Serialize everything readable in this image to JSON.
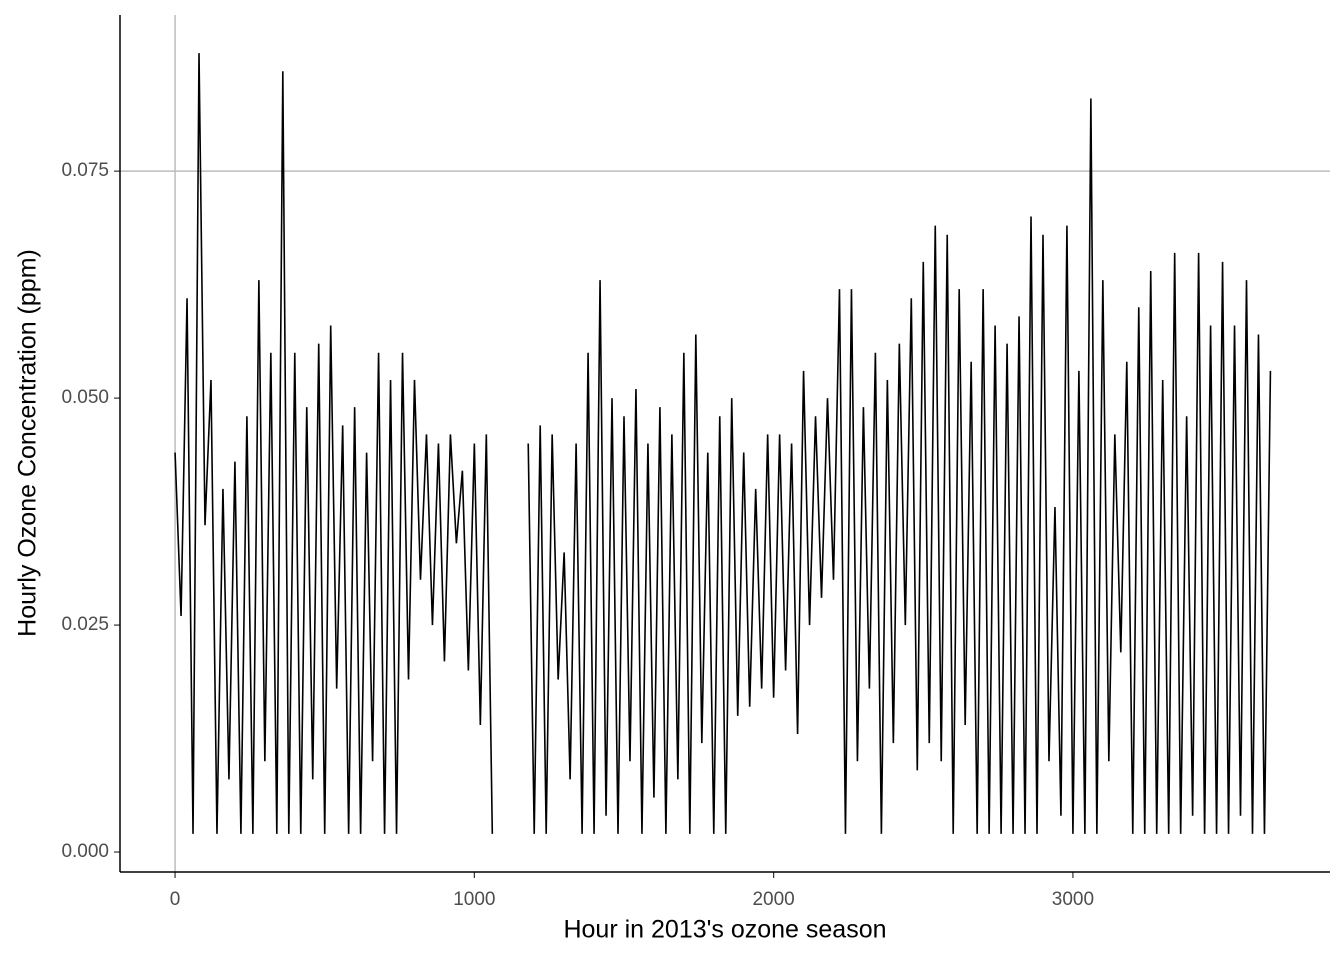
{
  "chart_data": {
    "type": "line",
    "x_label": "Hour in 2013's ozone season",
    "y_label": "Hourly Ozone Concentration (ppm)",
    "color": "#000000",
    "x": [
      0,
      20,
      40,
      60,
      80,
      100,
      120,
      140,
      160,
      180,
      200,
      220,
      240,
      260,
      280,
      300,
      320,
      340,
      360,
      380,
      400,
      420,
      440,
      460,
      480,
      500,
      520,
      540,
      560,
      580,
      600,
      620,
      640,
      660,
      680,
      700,
      720,
      740,
      760,
      780,
      800,
      820,
      840,
      860,
      880,
      900,
      920,
      940,
      960,
      980,
      1000,
      1020,
      1040,
      1060,
      1080,
      1100,
      1120,
      1140,
      1160,
      1180,
      1200,
      1220,
      1240,
      1260,
      1280,
      1300,
      1320,
      1340,
      1360,
      1380,
      1400,
      1420,
      1440,
      1460,
      1480,
      1500,
      1520,
      1540,
      1560,
      1580,
      1600,
      1620,
      1640,
      1660,
      1680,
      1700,
      1720,
      1740,
      1760,
      1780,
      1800,
      1820,
      1840,
      1860,
      1880,
      1900,
      1920,
      1940,
      1960,
      1980,
      2000,
      2020,
      2040,
      2060,
      2080,
      2100,
      2120,
      2140,
      2160,
      2180,
      2200,
      2220,
      2240,
      2260,
      2280,
      2300,
      2320,
      2340,
      2360,
      2380,
      2400,
      2420,
      2440,
      2460,
      2480,
      2500,
      2520,
      2540,
      2560,
      2580,
      2600,
      2620,
      2640,
      2660,
      2680,
      2700,
      2720,
      2740,
      2760,
      2780,
      2800,
      2820,
      2840,
      2860,
      2880,
      2900,
      2920,
      2940,
      2960,
      2980,
      3000,
      3020,
      3040,
      3060,
      3080,
      3100,
      3120,
      3140,
      3160,
      3180,
      3200,
      3220,
      3240,
      3260,
      3280,
      3300,
      3320,
      3340,
      3360,
      3380,
      3400,
      3420,
      3440,
      3460,
      3480,
      3500,
      3520,
      3540,
      3560,
      3580,
      3600,
      3620,
      3640,
      3660
    ],
    "values": [
      0.044,
      0.026,
      0.061,
      0.002,
      0.088,
      0.036,
      0.052,
      0.002,
      0.04,
      0.008,
      0.043,
      0.002,
      0.048,
      0.002,
      0.063,
      0.01,
      0.055,
      0.002,
      0.086,
      0.002,
      0.055,
      0.002,
      0.049,
      0.008,
      0.056,
      0.002,
      0.058,
      0.018,
      0.047,
      0.002,
      0.049,
      0.002,
      0.044,
      0.01,
      0.055,
      0.002,
      0.052,
      0.002,
      0.055,
      0.019,
      0.052,
      0.03,
      0.046,
      0.025,
      0.045,
      0.021,
      0.046,
      0.034,
      0.042,
      0.02,
      0.045,
      0.014,
      0.046,
      0.002,
      null,
      null,
      null,
      null,
      null,
      0.045,
      0.002,
      0.047,
      0.002,
      0.046,
      0.019,
      0.033,
      0.008,
      0.045,
      0.002,
      0.055,
      0.002,
      0.063,
      0.004,
      0.05,
      0.002,
      0.048,
      0.01,
      0.051,
      0.002,
      0.045,
      0.006,
      0.049,
      0.002,
      0.046,
      0.008,
      0.055,
      0.002,
      0.057,
      0.012,
      0.044,
      0.002,
      0.048,
      0.002,
      0.05,
      0.015,
      0.044,
      0.016,
      0.04,
      0.018,
      0.046,
      0.017,
      0.046,
      0.02,
      0.045,
      0.013,
      0.053,
      0.025,
      0.048,
      0.028,
      0.05,
      0.03,
      0.062,
      0.002,
      0.062,
      0.01,
      0.049,
      0.018,
      0.055,
      0.002,
      0.052,
      0.012,
      0.056,
      0.025,
      0.061,
      0.009,
      0.065,
      0.012,
      0.069,
      0.01,
      0.068,
      0.002,
      0.062,
      0.014,
      0.054,
      0.002,
      0.062,
      0.002,
      0.058,
      0.002,
      0.056,
      0.002,
      0.059,
      0.002,
      0.07,
      0.002,
      0.068,
      0.01,
      0.038,
      0.004,
      0.069,
      0.002,
      0.053,
      0.002,
      0.083,
      0.002,
      0.063,
      0.01,
      0.046,
      0.022,
      0.054,
      0.002,
      0.06,
      0.002,
      0.064,
      0.002,
      0.052,
      0.002,
      0.066,
      0.002,
      0.048,
      0.004,
      0.066,
      0.002,
      0.058,
      0.002,
      0.065,
      0.002,
      0.058,
      0.004,
      0.063,
      0.002,
      0.057,
      0.002,
      0.053
    ],
    "xlim": [
      -184,
      3859
    ],
    "ylim": [
      -0.0022,
      0.0922
    ],
    "xticks": [
      0,
      1000,
      2000,
      3000
    ],
    "yticks": [
      {
        "value": 0,
        "label": "0.000"
      },
      {
        "value": 0.025,
        "label": "0.025"
      },
      {
        "value": 0.05,
        "label": "0.050"
      },
      {
        "value": 0.075,
        "label": "0.075"
      }
    ],
    "vline": 0,
    "hline": 0.075
  }
}
